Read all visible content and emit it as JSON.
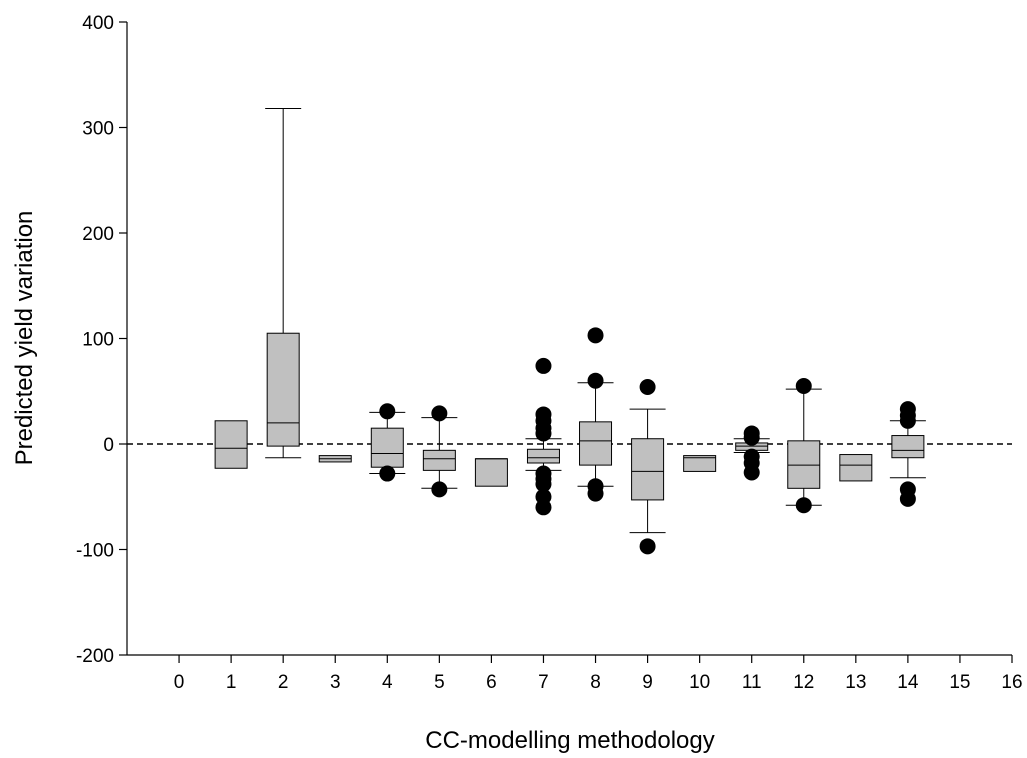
{
  "chart_data": {
    "type": "box",
    "title": "",
    "xlabel": "CC-modelling methodology",
    "ylabel": "Predicted yield variation",
    "xlim": [
      -1,
      16
    ],
    "ylim": [
      -200,
      400
    ],
    "xticks": [
      0,
      1,
      2,
      3,
      4,
      5,
      6,
      7,
      8,
      9,
      10,
      11,
      12,
      13,
      14,
      15,
      16
    ],
    "yticks": [
      -200,
      -100,
      0,
      100,
      200,
      300,
      400
    ],
    "reference_line": {
      "y": 0,
      "style": "dashed"
    },
    "grid": false,
    "colors": {
      "box_fill": "#c0c0c0",
      "outline": "#000000",
      "outlier": "#000000"
    },
    "boxes": [
      {
        "x": 1,
        "q1": -23,
        "median": -4,
        "q3": 22,
        "whisker_low": null,
        "whisker_high": null,
        "outliers": []
      },
      {
        "x": 2,
        "q1": -2,
        "median": 20,
        "q3": 105,
        "whisker_low": -13,
        "whisker_high": 318,
        "outliers": []
      },
      {
        "x": 3,
        "q1": -17,
        "median": -14,
        "q3": -11,
        "whisker_low": null,
        "whisker_high": null,
        "outliers": []
      },
      {
        "x": 4,
        "q1": -22,
        "median": -9,
        "q3": 15,
        "whisker_low": -28,
        "whisker_high": 30,
        "outliers": [
          31,
          -28
        ]
      },
      {
        "x": 5,
        "q1": -25,
        "median": -14,
        "q3": -6,
        "whisker_low": -42,
        "whisker_high": 25,
        "outliers": [
          29,
          -43
        ]
      },
      {
        "x": 6,
        "q1": -40,
        "median": -14,
        "q3": -14,
        "whisker_low": null,
        "whisker_high": null,
        "outliers": []
      },
      {
        "x": 7,
        "q1": -18,
        "median": -13,
        "q3": -5,
        "whisker_low": -25,
        "whisker_high": 5,
        "outliers": [
          74,
          28,
          22,
          15,
          10,
          -28,
          -33,
          -38,
          -50,
          -60
        ]
      },
      {
        "x": 8,
        "q1": -20,
        "median": 3,
        "q3": 21,
        "whisker_low": -40,
        "whisker_high": 58,
        "outliers": [
          103,
          60,
          -40,
          -47
        ]
      },
      {
        "x": 9,
        "q1": -53,
        "median": -26,
        "q3": 5,
        "whisker_low": -84,
        "whisker_high": 33,
        "outliers": [
          54,
          -97
        ]
      },
      {
        "x": 10,
        "q1": -26,
        "median": -13,
        "q3": -11,
        "whisker_low": null,
        "whisker_high": null,
        "outliers": []
      },
      {
        "x": 11,
        "q1": -6,
        "median": -2,
        "q3": 1,
        "whisker_low": -8,
        "whisker_high": 5,
        "outliers": [
          10,
          6,
          -12,
          -18,
          -27
        ]
      },
      {
        "x": 12,
        "q1": -42,
        "median": -20,
        "q3": 3,
        "whisker_low": -58,
        "whisker_high": 52,
        "outliers": [
          55,
          -58
        ]
      },
      {
        "x": 13,
        "q1": -35,
        "median": -20,
        "q3": -10,
        "whisker_low": null,
        "whisker_high": null,
        "outliers": []
      },
      {
        "x": 14,
        "q1": -13,
        "median": -6,
        "q3": 8,
        "whisker_low": -32,
        "whisker_high": 22,
        "outliers": [
          33,
          27,
          22,
          -43,
          -52
        ]
      }
    ]
  }
}
